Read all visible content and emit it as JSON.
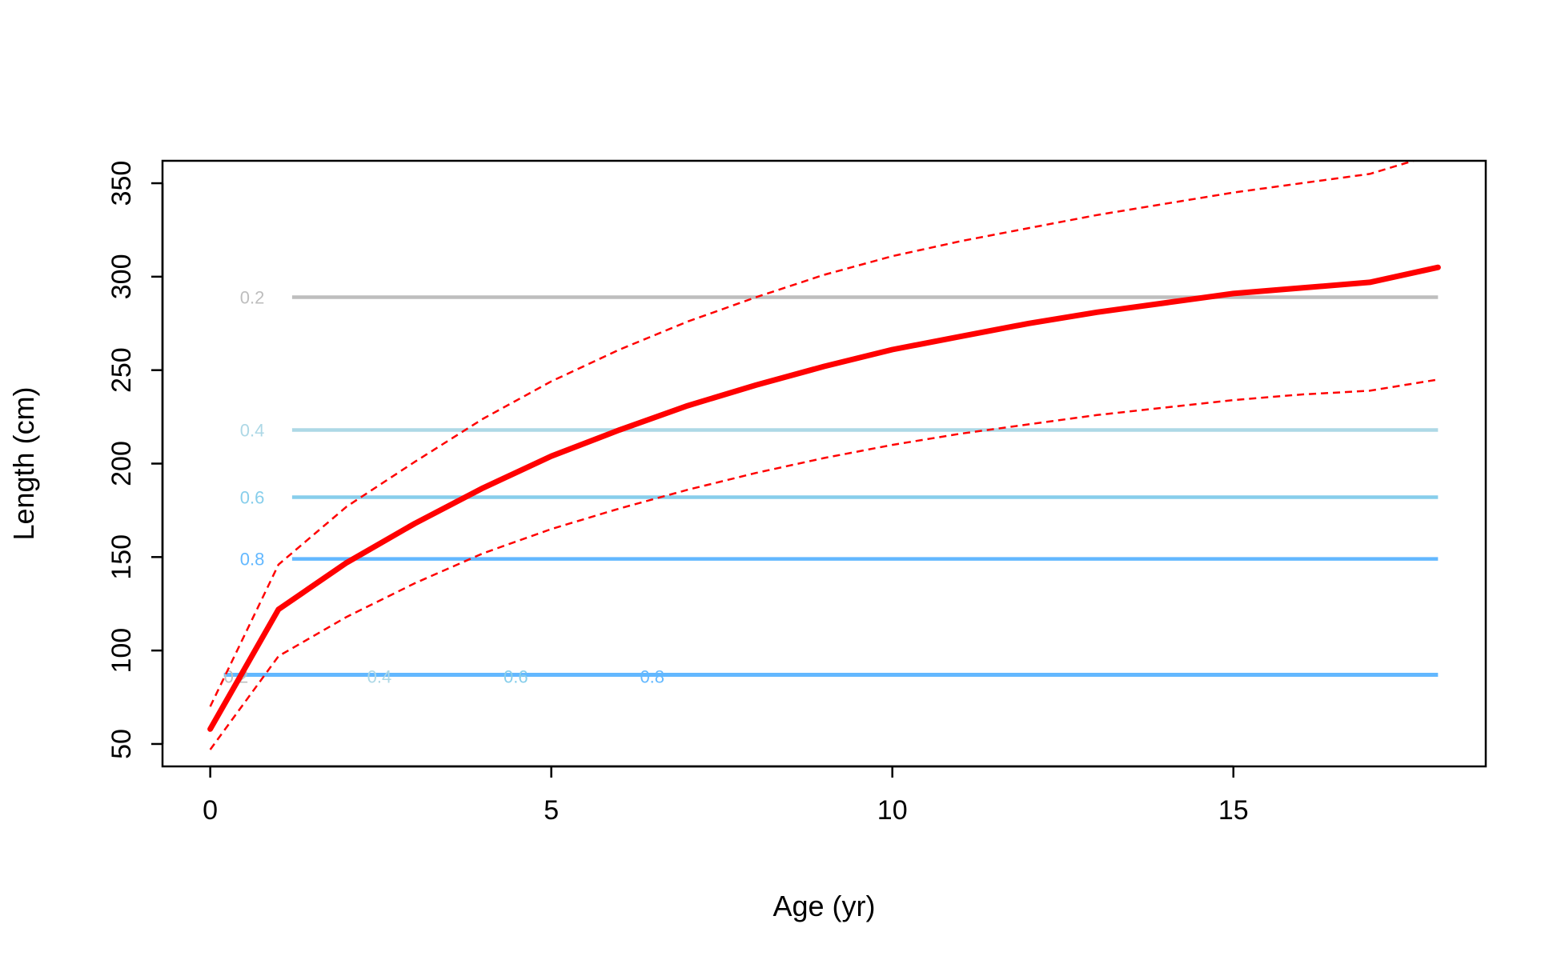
{
  "chart_data": {
    "type": "line",
    "xlabel": "Age (yr)",
    "ylabel": "Length (cm)",
    "xlim": [
      -0.7,
      18.7
    ],
    "ylim": [
      38,
      362
    ],
    "xticks": [
      0,
      5,
      10,
      15
    ],
    "yticks": [
      50,
      100,
      150,
      200,
      250,
      300,
      350
    ],
    "grid": false,
    "series": [
      {
        "style": "solid",
        "color": "#FF0000",
        "x": [
          0,
          1,
          2,
          3,
          4,
          5,
          6,
          7,
          8,
          9,
          10,
          11,
          12,
          13,
          14,
          15,
          16,
          17,
          18
        ],
        "y": [
          58,
          122,
          147,
          168,
          187,
          204,
          218,
          231,
          242,
          252,
          261,
          268,
          275,
          281,
          286,
          291,
          294,
          297,
          305
        ]
      },
      {
        "style": "dashed",
        "color": "#FF0000",
        "x": [
          0,
          1,
          2,
          3,
          4,
          5,
          6,
          7,
          8,
          9,
          10,
          11,
          12,
          13,
          14,
          15,
          16,
          17,
          18
        ],
        "y": [
          70,
          146,
          177,
          201,
          224,
          244,
          261,
          276,
          289,
          301,
          311,
          319,
          326,
          333,
          339,
          345,
          350,
          355,
          366
        ]
      },
      {
        "style": "dashed",
        "color": "#FF0000",
        "x": [
          0,
          1,
          2,
          3,
          4,
          5,
          6,
          7,
          8,
          9,
          10,
          11,
          12,
          13,
          14,
          15,
          16,
          17,
          18
        ],
        "y": [
          47,
          97,
          118,
          136,
          152,
          165,
          176,
          186,
          195,
          203,
          210,
          216,
          221,
          226,
          230,
          234,
          237,
          239,
          245
        ]
      }
    ],
    "reference_lines": [
      {
        "y": 289,
        "label": "0.2",
        "color": "#BEBEBE",
        "label_x": 0.6
      },
      {
        "y": 218,
        "label": "0.4",
        "color": "#ADD8E6",
        "label_x": 0.6
      },
      {
        "y": 182,
        "label": "0.6",
        "color": "#87CEEB",
        "label_x": 0.6
      },
      {
        "y": 149,
        "label": "0.8",
        "color": "#63B8FF",
        "label_x": 0.6
      }
    ],
    "bottom_line": {
      "y": 87,
      "color": "#63B8FF",
      "labels": [
        {
          "label": "0.2",
          "x": 0.2,
          "color": "#BEBEBE"
        },
        {
          "label": "0.4",
          "x": 2.3,
          "color": "#ADD8E6"
        },
        {
          "label": "0.6",
          "x": 4.3,
          "color": "#87CEEB"
        },
        {
          "label": "0.8",
          "x": 6.3,
          "color": "#63B8FF"
        }
      ]
    }
  }
}
